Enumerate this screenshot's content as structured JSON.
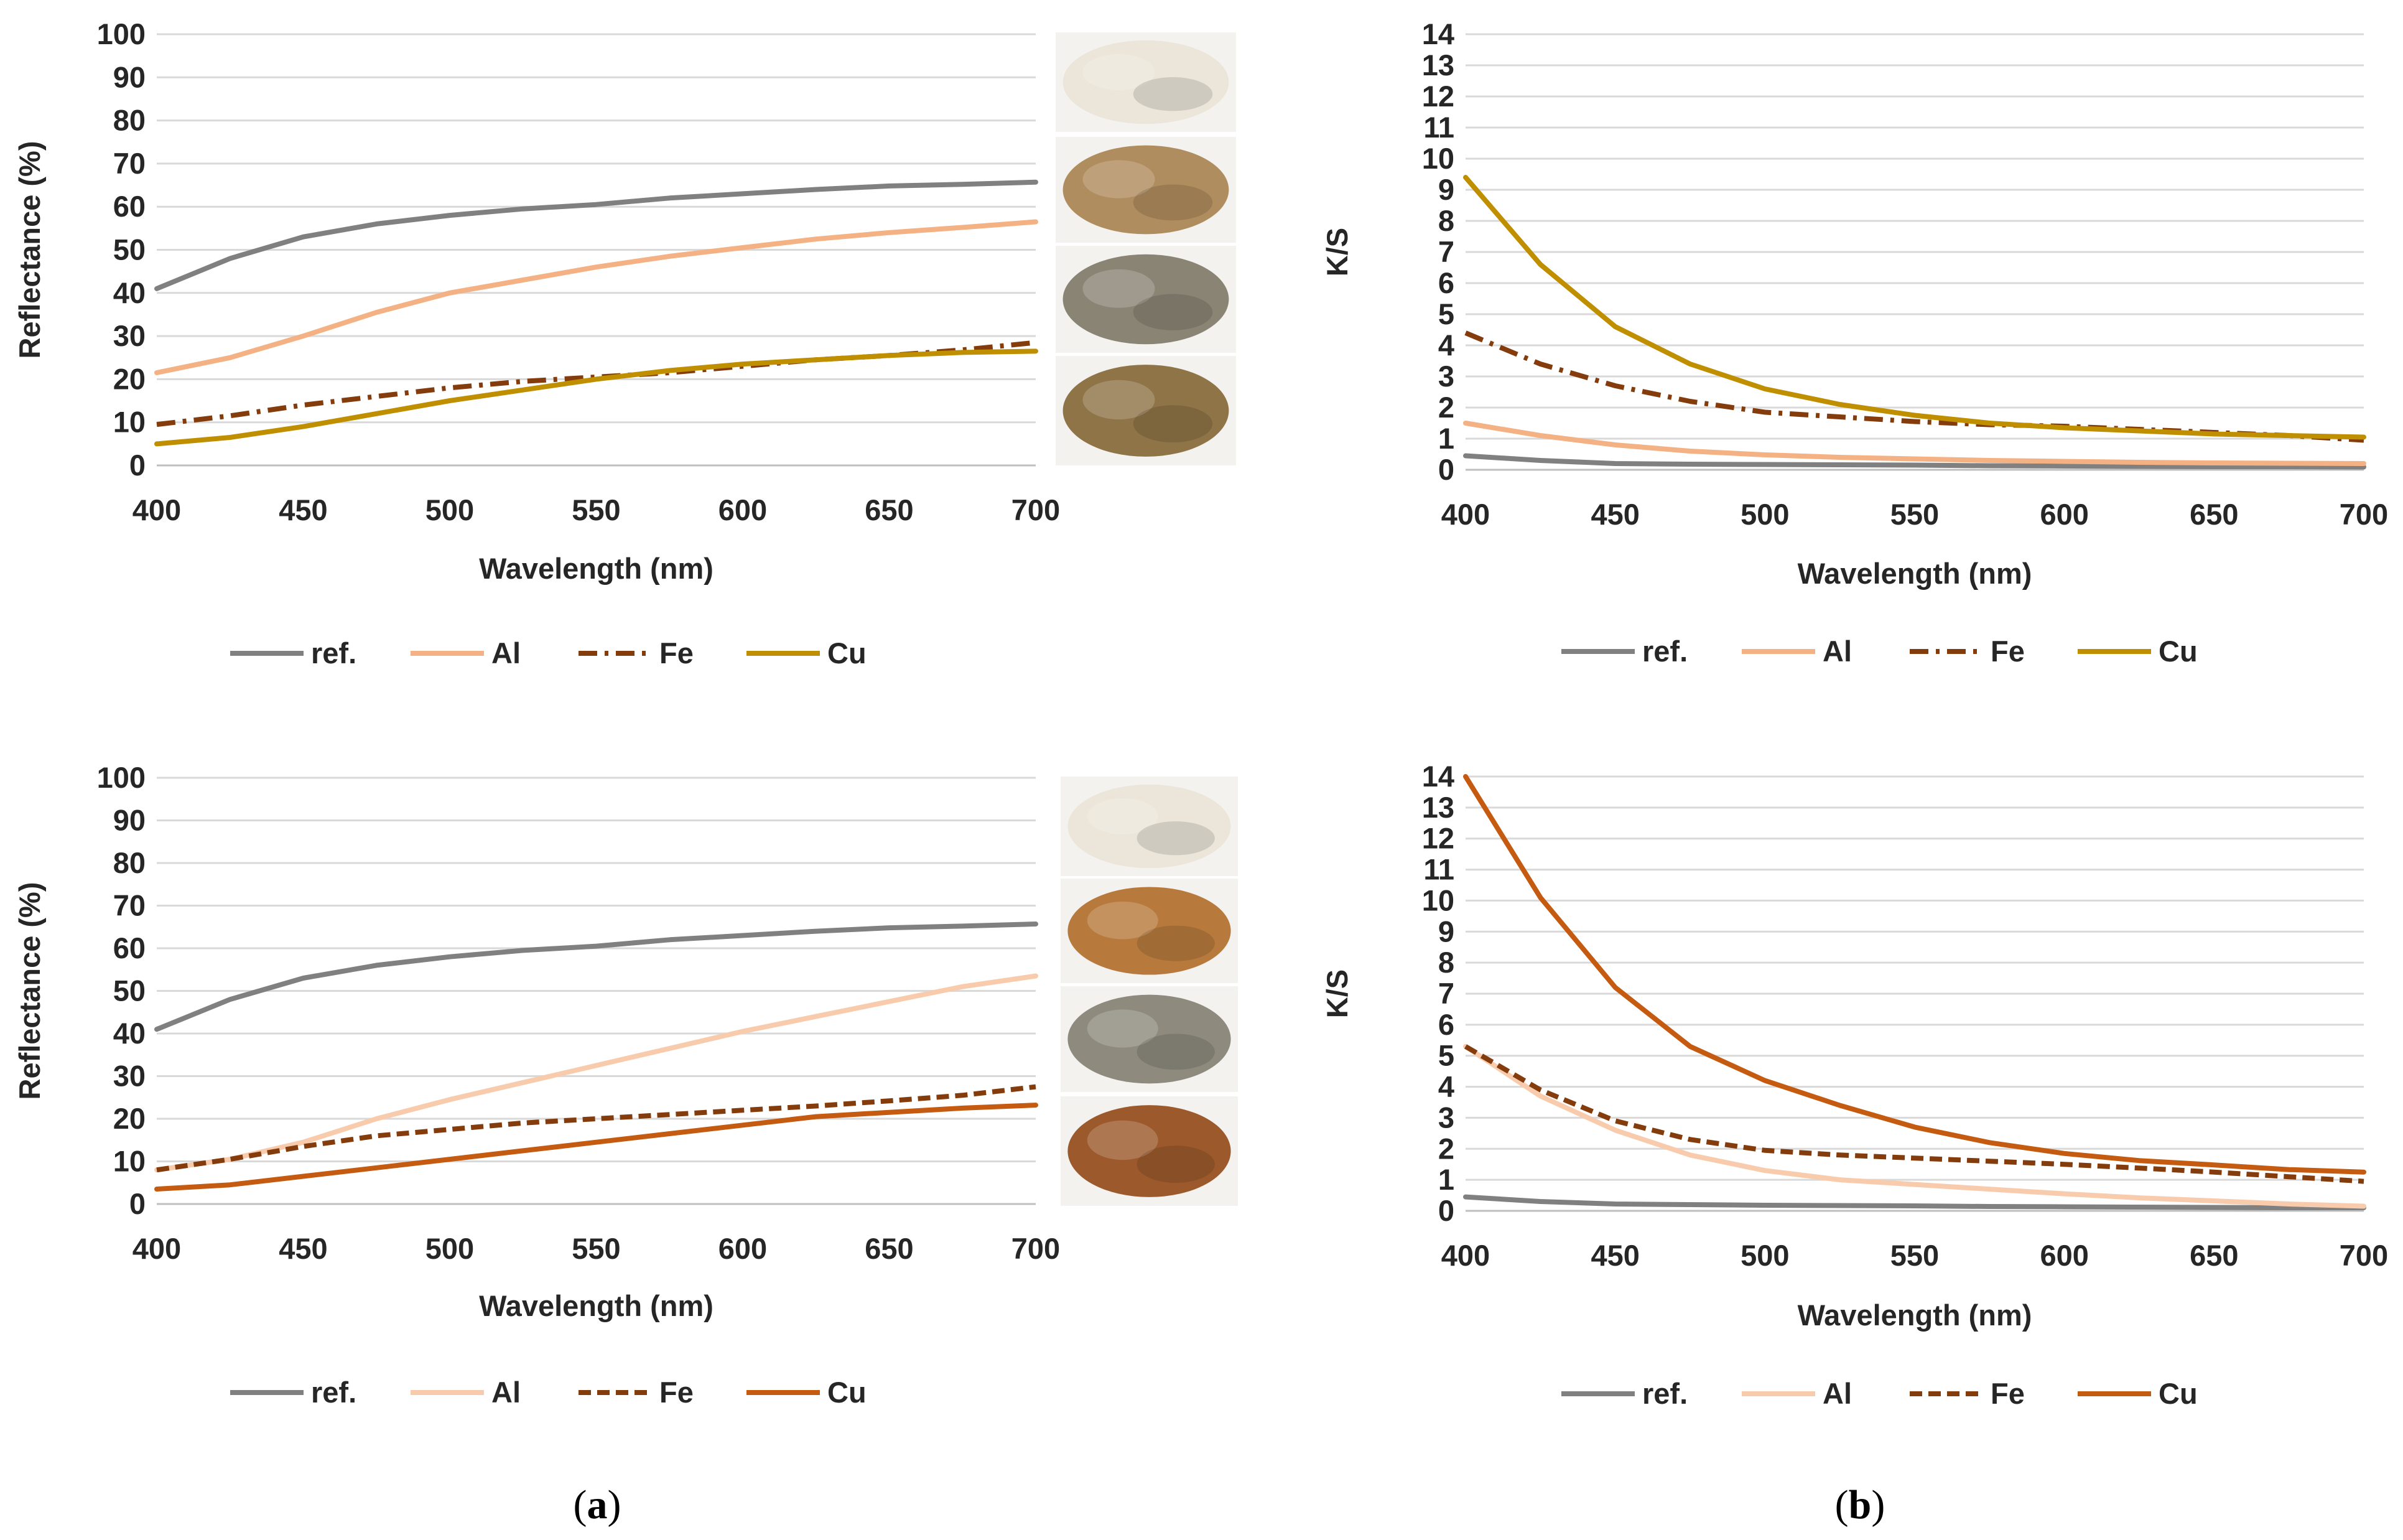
{
  "captions": [
    {
      "open": "(",
      "letter": "a",
      "close": ")"
    },
    {
      "open": "(",
      "letter": "b",
      "close": ")"
    }
  ],
  "sample_photos": [
    {
      "name": "white-wool",
      "color": "#ece6da"
    },
    {
      "name": "light-brown-wool",
      "color": "#b08d5e"
    },
    {
      "name": "gray-brown-wool",
      "color": "#8a8474"
    },
    {
      "name": "brown-wool",
      "color": "#8f7447"
    },
    {
      "name": "white-wool-2",
      "color": "#ece6da"
    },
    {
      "name": "orange-wool",
      "color": "#b77a3c"
    },
    {
      "name": "gray-wool",
      "color": "#8e8a7e"
    },
    {
      "name": "rust-wool",
      "color": "#9c5a2c"
    }
  ],
  "chart_data": [
    {
      "type": "line",
      "title": "",
      "xlabel": "Wavelength (nm)",
      "ylabel": "Reflectance (%)",
      "xlim": [
        400,
        700
      ],
      "ylim": [
        0,
        100
      ],
      "xticks": [
        400,
        450,
        500,
        550,
        600,
        650,
        700
      ],
      "yticks": [
        0,
        10,
        20,
        30,
        40,
        50,
        60,
        70,
        80,
        90,
        100
      ],
      "grid": true,
      "legend_position": "bottom",
      "x": [
        400,
        425,
        450,
        475,
        500,
        525,
        550,
        575,
        600,
        625,
        650,
        675,
        700
      ],
      "series": [
        {
          "name": "ref.",
          "color": "#808080",
          "dash": "solid",
          "values": [
            41,
            48,
            53,
            56,
            58,
            59.5,
            60.5,
            62,
            63,
            64,
            64.8,
            65.2,
            65.7
          ]
        },
        {
          "name": "Al",
          "color": "#f4b183",
          "dash": "solid",
          "values": [
            21.5,
            25,
            30,
            35.5,
            40,
            43,
            46,
            48.5,
            50.5,
            52.5,
            54,
            55.2,
            56.5
          ]
        },
        {
          "name": "Fe",
          "color": "#843c0c",
          "dash": "dashdot",
          "values": [
            9.5,
            11.5,
            14,
            16,
            18,
            19.5,
            20.5,
            21.5,
            23,
            24.5,
            25.5,
            26.8,
            28.5
          ]
        },
        {
          "name": "Cu",
          "color": "#bf8f00",
          "dash": "solid",
          "values": [
            5,
            6.5,
            9,
            12,
            15,
            17.5,
            20,
            22,
            23.5,
            24.5,
            25.5,
            26.2,
            26.5
          ]
        }
      ]
    },
    {
      "type": "line",
      "title": "",
      "xlabel": "Wavelength (nm)",
      "ylabel": "K/S",
      "xlim": [
        400,
        700
      ],
      "ylim": [
        0,
        14
      ],
      "xticks": [
        400,
        450,
        500,
        550,
        600,
        650,
        700
      ],
      "yticks": [
        0,
        1,
        2,
        3,
        4,
        5,
        6,
        7,
        8,
        9,
        10,
        11,
        12,
        13,
        14
      ],
      "grid": true,
      "legend_position": "bottom",
      "x": [
        400,
        425,
        450,
        475,
        500,
        525,
        550,
        575,
        600,
        625,
        650,
        675,
        700
      ],
      "series": [
        {
          "name": "ref.",
          "color": "#808080",
          "dash": "solid",
          "values": [
            0.45,
            0.3,
            0.2,
            0.18,
            0.17,
            0.16,
            0.15,
            0.13,
            0.12,
            0.11,
            0.1,
            0.1,
            0.09
          ]
        },
        {
          "name": "Al",
          "color": "#f4b183",
          "dash": "solid",
          "values": [
            1.5,
            1.1,
            0.8,
            0.6,
            0.48,
            0.4,
            0.35,
            0.3,
            0.27,
            0.24,
            0.22,
            0.21,
            0.2
          ]
        },
        {
          "name": "Fe",
          "color": "#843c0c",
          "dash": "dashdot",
          "values": [
            4.4,
            3.4,
            2.7,
            2.2,
            1.85,
            1.7,
            1.55,
            1.45,
            1.4,
            1.3,
            1.2,
            1.1,
            0.95
          ]
        },
        {
          "name": "Cu",
          "color": "#bf8f00",
          "dash": "solid",
          "values": [
            9.4,
            6.6,
            4.6,
            3.4,
            2.6,
            2.1,
            1.75,
            1.5,
            1.35,
            1.25,
            1.15,
            1.1,
            1.05
          ]
        }
      ]
    },
    {
      "type": "line",
      "title": "",
      "xlabel": "Wavelength (nm)",
      "ylabel": "Reflectance (%)",
      "xlim": [
        400,
        700
      ],
      "ylim": [
        0,
        100
      ],
      "xticks": [
        400,
        450,
        500,
        550,
        600,
        650,
        700
      ],
      "yticks": [
        0,
        10,
        20,
        30,
        40,
        50,
        60,
        70,
        80,
        90,
        100
      ],
      "grid": true,
      "legend_position": "bottom",
      "x": [
        400,
        425,
        450,
        475,
        500,
        525,
        550,
        575,
        600,
        625,
        650,
        675,
        700
      ],
      "series": [
        {
          "name": "ref.",
          "color": "#808080",
          "dash": "solid",
          "values": [
            41,
            48,
            53,
            56,
            58,
            59.5,
            60.5,
            62,
            63,
            64,
            64.8,
            65.2,
            65.7
          ]
        },
        {
          "name": "Al",
          "color": "#f8cbad",
          "dash": "solid",
          "values": [
            8,
            10.5,
            14.5,
            20,
            24.5,
            28.5,
            32.5,
            36.5,
            40.5,
            44,
            47.5,
            51,
            53.5
          ]
        },
        {
          "name": "Fe",
          "color": "#843c0c",
          "dash": "dash",
          "values": [
            8,
            10.5,
            13.5,
            16,
            17.5,
            19,
            20,
            21,
            22,
            23,
            24.2,
            25.5,
            27.5
          ]
        },
        {
          "name": "Cu",
          "color": "#c55a11",
          "dash": "solid",
          "values": [
            3.5,
            4.5,
            6.5,
            8.5,
            10.5,
            12.5,
            14.5,
            16.5,
            18.5,
            20.5,
            21.5,
            22.5,
            23.2
          ]
        }
      ]
    },
    {
      "type": "line",
      "title": "",
      "xlabel": "Wavelength (nm)",
      "ylabel": "K/S",
      "xlim": [
        400,
        700
      ],
      "ylim": [
        0,
        14
      ],
      "xticks": [
        400,
        450,
        500,
        550,
        600,
        650,
        700
      ],
      "yticks": [
        0,
        1,
        2,
        3,
        4,
        5,
        6,
        7,
        8,
        9,
        10,
        11,
        12,
        13,
        14
      ],
      "grid": true,
      "legend_position": "bottom",
      "x": [
        400,
        425,
        450,
        475,
        500,
        525,
        550,
        575,
        600,
        625,
        650,
        675,
        700
      ],
      "series": [
        {
          "name": "ref.",
          "color": "#808080",
          "dash": "solid",
          "values": [
            0.45,
            0.3,
            0.22,
            0.2,
            0.18,
            0.17,
            0.16,
            0.14,
            0.13,
            0.12,
            0.11,
            0.1,
            0.1
          ]
        },
        {
          "name": "Al",
          "color": "#f8cbad",
          "dash": "solid",
          "values": [
            5.3,
            3.7,
            2.6,
            1.8,
            1.3,
            1.0,
            0.85,
            0.7,
            0.55,
            0.42,
            0.32,
            0.22,
            0.15
          ]
        },
        {
          "name": "Fe",
          "color": "#843c0c",
          "dash": "dash",
          "values": [
            5.3,
            3.9,
            2.9,
            2.3,
            1.95,
            1.8,
            1.7,
            1.6,
            1.5,
            1.38,
            1.25,
            1.1,
            0.95
          ]
        },
        {
          "name": "Cu",
          "color": "#c55a11",
          "dash": "solid",
          "values": [
            14.0,
            10.1,
            7.2,
            5.3,
            4.2,
            3.4,
            2.7,
            2.2,
            1.85,
            1.62,
            1.48,
            1.33,
            1.25
          ]
        }
      ]
    }
  ]
}
